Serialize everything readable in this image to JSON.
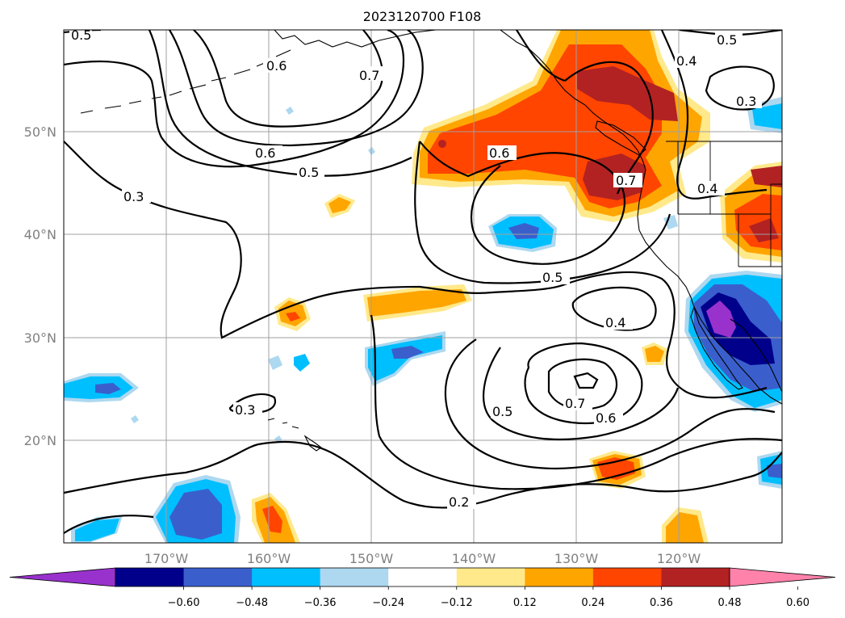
{
  "title": "2023120700 F108",
  "lat_labels": [
    "50°N",
    "40°N",
    "30°N",
    "20°N"
  ],
  "lon_labels": [
    "170°W",
    "160°W",
    "150°W",
    "140°W",
    "130°W",
    "120°W"
  ],
  "colorbar": {
    "ticks": [
      "−0.60",
      "−0.48",
      "−0.36",
      "−0.24",
      "−0.12",
      "0.12",
      "0.24",
      "0.36",
      "0.48",
      "0.60"
    ],
    "colors": [
      "#9932cc",
      "#00008b",
      "#3a5fcd",
      "#00bfff",
      "#add8f0",
      "#ffffff",
      "#ffe98b",
      "#ffa500",
      "#ff4500",
      "#b22222",
      "#ff82ab"
    ]
  },
  "contour_labels": [
    "0.5",
    "0.6",
    "0.7",
    "0.6",
    "0.5",
    "0.3",
    "0.5",
    "0.4",
    "0.3",
    "0.6",
    "0.7",
    "0.4",
    "0.5",
    "0.4",
    "0.5",
    "0.7",
    "0.6",
    "0.3",
    "0.2"
  ]
}
